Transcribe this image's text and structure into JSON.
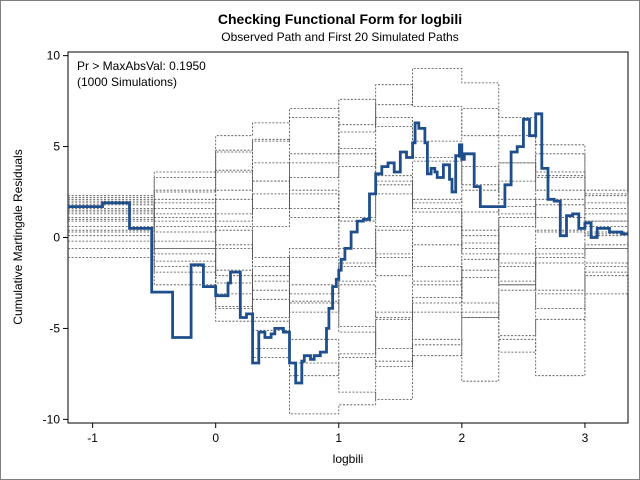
{
  "chart_data": {
    "type": "line",
    "title": "Checking Functional Form for logbili",
    "subtitle": "Observed Path and First 20 Simulated Paths",
    "xlabel": "logbili",
    "ylabel": "Cumulative Martingale Residuals",
    "xlim": [
      -1.2,
      3.35
    ],
    "ylim": [
      -10.2,
      10.2
    ],
    "xticks": [
      -1,
      0,
      1,
      2,
      3
    ],
    "yticks": [
      -10,
      -5,
      0,
      5,
      10
    ],
    "annotations": [
      "Pr > MaxAbsVal: 0.1950",
      "(1000 Simulations)"
    ],
    "colors": {
      "observed": "#1f4e8c",
      "simulated": "#4a4a4a",
      "axis": "#000000"
    },
    "observed_path": {
      "x": [
        -1.2,
        -0.92,
        -0.7,
        -0.52,
        -0.35,
        -0.2,
        -0.1,
        0.0,
        0.1,
        0.12,
        0.2,
        0.25,
        0.3,
        0.35,
        0.4,
        0.45,
        0.48,
        0.55,
        0.6,
        0.65,
        0.7,
        0.72,
        0.77,
        0.8,
        0.85,
        0.9,
        0.92,
        0.95,
        0.98,
        1.0,
        1.02,
        1.05,
        1.1,
        1.15,
        1.2,
        1.25,
        1.3,
        1.35,
        1.4,
        1.45,
        1.5,
        1.55,
        1.6,
        1.62,
        1.65,
        1.7,
        1.72,
        1.75,
        1.78,
        1.8,
        1.85,
        1.9,
        1.92,
        1.95,
        1.98,
        2.0,
        2.02,
        2.05,
        2.1,
        2.15,
        2.25,
        2.35,
        2.4,
        2.45,
        2.5,
        2.55,
        2.6,
        2.65,
        2.7,
        2.75,
        2.8,
        2.85,
        2.9,
        2.95,
        3.0,
        3.05,
        3.1,
        3.2,
        3.3,
        3.35
      ],
      "y": [
        1.7,
        1.9,
        0.5,
        -3.0,
        -5.5,
        -1.5,
        -2.7,
        -3.2,
        -2.5,
        -1.9,
        -4.4,
        -4.2,
        -6.9,
        -5.2,
        -5.5,
        -5.3,
        -5.0,
        -5.2,
        -6.9,
        -8.0,
        -6.8,
        -6.5,
        -6.7,
        -6.5,
        -6.3,
        -5.0,
        -3.9,
        -2.7,
        -2.3,
        -1.8,
        -1.2,
        -0.6,
        0.3,
        0.9,
        1.0,
        2.4,
        3.5,
        3.9,
        4.1,
        3.6,
        4.7,
        4.4,
        5.2,
        6.3,
        6.0,
        5.2,
        3.5,
        3.8,
        3.6,
        3.3,
        4.0,
        3.2,
        2.5,
        4.5,
        5.1,
        4.3,
        4.6,
        4.6,
        2.8,
        1.7,
        1.7,
        2.9,
        4.7,
        5.0,
        6.5,
        5.6,
        6.8,
        3.8,
        2.1,
        2.0,
        0.1,
        1.2,
        1.3,
        0.5,
        0.8,
        0.0,
        0.5,
        0.3,
        0.2,
        0.2
      ]
    },
    "simulated_paths": [
      {
        "x": [
          -1.2,
          -0.5,
          0.0,
          0.3,
          0.6,
          1.0,
          1.3,
          1.6,
          2.0,
          2.3,
          2.6,
          3.0,
          3.35
        ],
        "y": [
          2.2,
          2.5,
          4.8,
          5.4,
          4.1,
          5.8,
          7.3,
          9.3,
          8.5,
          6.6,
          5.1,
          2.6,
          1.3
        ]
      },
      {
        "x": [
          -1.2,
          -0.5,
          0.0,
          0.3,
          0.6,
          1.0,
          1.3,
          1.6,
          2.0,
          2.3,
          2.6,
          3.0,
          3.35
        ],
        "y": [
          1.9,
          0.6,
          -1.8,
          -3.4,
          -5.6,
          -6.6,
          -4.5,
          -2.4,
          -0.3,
          1.7,
          3.4,
          1.6,
          0.6
        ]
      },
      {
        "x": [
          -1.2,
          -0.5,
          0.0,
          0.3,
          0.6,
          1.0,
          1.3,
          1.6,
          2.0,
          2.3,
          2.6,
          3.0,
          3.35
        ],
        "y": [
          1.4,
          -0.2,
          -3.8,
          -6.6,
          -9.7,
          -9.2,
          -6.8,
          -3.3,
          -1.2,
          0.6,
          1.8,
          0.9,
          0.4
        ]
      },
      {
        "x": [
          -1.2,
          -0.5,
          0.0,
          0.3,
          0.6,
          1.0,
          1.3,
          1.6,
          2.0,
          2.3,
          2.6,
          3.0,
          3.35
        ],
        "y": [
          2.0,
          1.3,
          0.4,
          -1.6,
          -3.5,
          -5.2,
          -6.1,
          -4.1,
          -2.2,
          -0.9,
          0.4,
          0.2,
          -0.2
        ]
      },
      {
        "x": [
          -1.2,
          -0.5,
          0.0,
          0.3,
          0.6,
          1.0,
          1.3,
          1.6,
          2.0,
          2.3,
          2.6,
          3.0,
          3.35
        ],
        "y": [
          1.1,
          2.6,
          3.7,
          5.3,
          6.6,
          6.2,
          8.4,
          7.2,
          5.6,
          4.1,
          3.3,
          1.9,
          1.4
        ]
      },
      {
        "x": [
          -1.2,
          -0.5,
          0.0,
          0.3,
          0.6,
          1.0,
          1.3,
          1.6,
          2.0,
          2.3,
          2.6,
          3.0,
          3.35
        ],
        "y": [
          0.6,
          -0.6,
          -2.5,
          -4.6,
          -6.9,
          -8.5,
          -8.9,
          -6.5,
          -4.4,
          -2.4,
          -0.9,
          -0.6,
          -0.3
        ]
      },
      {
        "x": [
          -1.2,
          -0.5,
          0.0,
          0.3,
          0.6,
          1.0,
          1.3,
          1.6,
          2.0,
          2.3,
          2.6,
          3.0,
          3.35
        ],
        "y": [
          1.6,
          3.3,
          4.7,
          3.1,
          1.6,
          3.9,
          6.6,
          5.3,
          7.1,
          5.6,
          3.6,
          2.3,
          1.1
        ]
      },
      {
        "x": [
          -1.2,
          -0.5,
          0.0,
          0.3,
          0.6,
          1.0,
          1.3,
          1.6,
          2.0,
          2.3,
          2.6,
          3.0,
          3.35
        ],
        "y": [
          -0.2,
          -1.3,
          -0.6,
          -2.9,
          -4.1,
          -2.6,
          -4.4,
          -3.6,
          -1.8,
          -2.6,
          -1.1,
          -0.4,
          0.1
        ]
      },
      {
        "x": [
          -1.2,
          -0.5,
          0.0,
          0.3,
          0.6,
          1.0,
          1.3,
          1.6,
          2.0,
          2.3,
          2.6,
          3.0,
          3.35
        ],
        "y": [
          0.9,
          1.9,
          3.6,
          1.6,
          3.3,
          4.9,
          3.4,
          1.9,
          3.9,
          2.1,
          1.1,
          0.6,
          0.2
        ]
      },
      {
        "x": [
          -1.2,
          -0.5,
          0.0,
          0.3,
          0.6,
          1.0,
          1.3,
          1.6,
          2.0,
          2.3,
          2.6,
          3.0,
          3.35
        ],
        "y": [
          1.3,
          -0.9,
          -2.1,
          -4.4,
          -2.6,
          -4.9,
          -7.1,
          -5.9,
          -4.1,
          -6.3,
          -4.5,
          -2.1,
          -0.9
        ]
      },
      {
        "x": [
          -1.2,
          -0.5,
          0.0,
          0.3,
          0.6,
          1.0,
          1.3,
          1.6,
          2.0,
          2.3,
          2.6,
          3.0,
          3.35
        ],
        "y": [
          0.3,
          0.9,
          2.1,
          0.6,
          2.6,
          0.9,
          2.4,
          4.2,
          2.9,
          1.3,
          0.3,
          0.1,
          -0.1
        ]
      },
      {
        "x": [
          -1.2,
          -0.5,
          0.0,
          0.3,
          0.6,
          1.0,
          1.3,
          1.6,
          2.0,
          2.3,
          2.6,
          3.0,
          3.35
        ],
        "y": [
          2.3,
          3.6,
          5.6,
          6.3,
          7.1,
          4.6,
          2.9,
          1.6,
          0.1,
          -1.6,
          -0.6,
          0.3,
          0.4
        ]
      },
      {
        "x": [
          -1.2,
          -0.5,
          0.0,
          0.3,
          0.6,
          1.0,
          1.3,
          1.6,
          2.0,
          2.3,
          2.6,
          3.0,
          3.35
        ],
        "y": [
          -1.1,
          -2.6,
          -3.9,
          -2.1,
          -0.6,
          -2.4,
          -1.1,
          0.6,
          -0.9,
          -2.6,
          -3.9,
          -1.6,
          -0.4
        ]
      },
      {
        "x": [
          -1.2,
          -0.5,
          0.0,
          0.3,
          0.6,
          1.0,
          1.3,
          1.6,
          2.0,
          2.3,
          2.6,
          3.0,
          3.35
        ],
        "y": [
          1.8,
          0.3,
          1.3,
          3.1,
          4.6,
          7.6,
          6.1,
          4.4,
          2.6,
          4.1,
          2.6,
          1.3,
          0.7
        ]
      },
      {
        "x": [
          -1.2,
          -0.5,
          0.0,
          0.3,
          0.6,
          1.0,
          1.3,
          1.6,
          2.0,
          2.3,
          2.6,
          3.0,
          3.35
        ],
        "y": [
          0.1,
          -0.6,
          0.6,
          -1.1,
          -3.1,
          -1.4,
          0.4,
          -1.6,
          -3.6,
          -5.6,
          -7.6,
          -3.1,
          -1.1
        ]
      },
      {
        "x": [
          -1.2,
          -0.5,
          0.0,
          0.3,
          0.6,
          1.0,
          1.3,
          1.6,
          2.0,
          2.3,
          2.6,
          3.0,
          3.35
        ],
        "y": [
          1.5,
          2.1,
          0.9,
          2.4,
          1.1,
          -0.6,
          -2.1,
          -0.4,
          1.4,
          3.1,
          4.6,
          2.4,
          1.0
        ]
      },
      {
        "x": [
          -1.2,
          -0.5,
          0.0,
          0.3,
          0.6,
          1.0,
          1.3,
          1.6,
          2.0,
          2.3,
          2.6,
          3.0,
          3.35
        ],
        "y": [
          -0.6,
          -1.9,
          -3.1,
          -5.1,
          -3.6,
          -1.6,
          0.6,
          2.1,
          0.4,
          -1.4,
          -2.9,
          -1.9,
          -0.6
        ]
      },
      {
        "x": [
          -1.2,
          -0.5,
          0.0,
          0.3,
          0.6,
          1.0,
          1.3,
          1.6,
          2.0,
          2.3,
          2.6,
          3.0,
          3.35
        ],
        "y": [
          2.1,
          1.1,
          2.6,
          4.1,
          2.4,
          0.9,
          -0.9,
          -2.6,
          -4.4,
          -2.9,
          -1.4,
          -0.6,
          0.0
        ]
      },
      {
        "x": [
          -1.2,
          -0.5,
          0.0,
          0.3,
          0.6,
          1.0,
          1.3,
          1.6,
          2.0,
          2.3,
          2.6,
          3.0,
          3.35
        ],
        "y": [
          0.4,
          1.6,
          -0.4,
          -2.4,
          -1.1,
          1.1,
          3.1,
          1.4,
          -0.6,
          1.1,
          2.1,
          0.9,
          0.3
        ]
      },
      {
        "x": [
          -1.2,
          -0.5,
          0.0,
          0.3,
          0.6,
          1.0,
          1.3,
          1.6,
          2.0,
          2.3,
          2.6,
          3.0,
          3.35
        ],
        "y": [
          1.0,
          -1.6,
          -4.6,
          -6.1,
          -7.6,
          -6.4,
          -4.1,
          -5.6,
          -7.9,
          -5.4,
          -3.1,
          -1.4,
          -0.5
        ]
      }
    ]
  }
}
